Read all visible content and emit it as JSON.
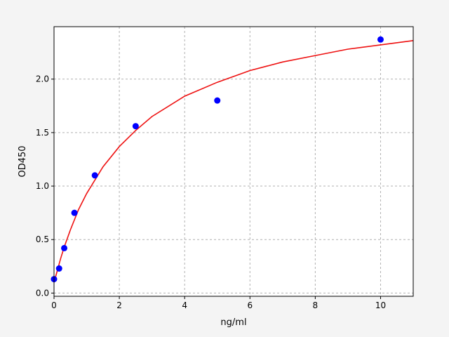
{
  "chart_data": {
    "type": "scatter",
    "title": "",
    "xlabel": "ng/ml",
    "ylabel": "OD450",
    "xlim": [
      0,
      11
    ],
    "ylim": [
      -0.03,
      2.49
    ],
    "grid": true,
    "xticks": [
      0,
      2,
      4,
      6,
      8,
      10
    ],
    "xtick_labels": [
      "0",
      "2",
      "4",
      "6",
      "8",
      "10"
    ],
    "yticks": [
      0.0,
      0.5,
      1.0,
      1.5,
      2.0
    ],
    "ytick_labels": [
      "0.0",
      "0.5",
      "1.0",
      "1.5",
      "2.0"
    ],
    "series": [
      {
        "type": "scatter",
        "color": "#0000ff",
        "x": [
          0,
          0.156,
          0.312,
          0.625,
          1.25,
          2.5,
          5,
          10
        ],
        "y": [
          0.13,
          0.23,
          0.42,
          0.75,
          1.1,
          1.56,
          1.8,
          2.37
        ]
      },
      {
        "type": "line",
        "color": "#ee1111",
        "x": [
          0,
          0.1,
          0.2,
          0.3,
          0.5,
          0.75,
          1,
          1.5,
          2,
          2.5,
          3,
          4,
          5,
          6,
          7,
          8,
          9,
          10,
          11
        ],
        "y": [
          0.1,
          0.21,
          0.32,
          0.42,
          0.59,
          0.78,
          0.93,
          1.18,
          1.37,
          1.52,
          1.65,
          1.84,
          1.97,
          2.08,
          2.16,
          2.22,
          2.28,
          2.32,
          2.36
        ]
      }
    ]
  }
}
